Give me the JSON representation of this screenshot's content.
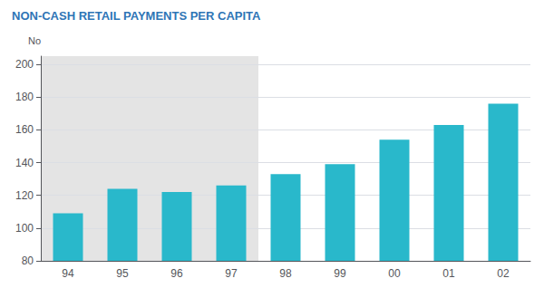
{
  "chart_data": {
    "type": "bar",
    "title": "NON-CASH RETAIL PAYMENTS PER CAPITA",
    "title_color": "#2E75B6",
    "ylabel": "No",
    "categories": [
      "94",
      "95",
      "96",
      "97",
      "98",
      "99",
      "00",
      "01",
      "02"
    ],
    "values": [
      109,
      124,
      122,
      126,
      133,
      139,
      154,
      163,
      176
    ],
    "color": "#29B8CB",
    "ylim": [
      80,
      205
    ],
    "yticks": [
      80,
      100,
      120,
      140,
      160,
      180,
      200
    ],
    "grid": true,
    "shaded": {
      "from": "94",
      "to": "97",
      "color": "#E4E4E4"
    }
  }
}
